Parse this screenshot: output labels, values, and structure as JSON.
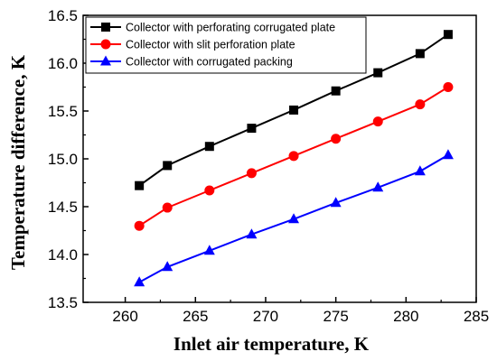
{
  "chart_data": {
    "type": "line",
    "title": "",
    "xlabel": "Inlet air temperature, K",
    "ylabel": "Temperature difference, K",
    "xlim": [
      257,
      285
    ],
    "ylim": [
      13.5,
      16.5
    ],
    "xticks": [
      260,
      265,
      270,
      275,
      280,
      285
    ],
    "yticks": [
      13.5,
      14.0,
      14.5,
      15.0,
      15.5,
      16.0,
      16.5
    ],
    "grid": false,
    "legend_position": "top-left",
    "series": [
      {
        "name": "Collector with perforating corrugated plate",
        "color": "#000000",
        "marker": "square",
        "x": [
          261,
          263,
          266,
          269,
          272,
          275,
          278,
          281,
          283
        ],
        "y": [
          14.72,
          14.93,
          15.13,
          15.32,
          15.51,
          15.71,
          15.9,
          16.1,
          16.3
        ]
      },
      {
        "name": "Collector with slit perforation plate",
        "color": "#ff0000",
        "marker": "circle",
        "x": [
          261,
          263,
          266,
          269,
          272,
          275,
          278,
          281,
          283
        ],
        "y": [
          14.3,
          14.49,
          14.67,
          14.85,
          15.03,
          15.21,
          15.39,
          15.57,
          15.75
        ]
      },
      {
        "name": "Collector with corrugated packing",
        "color": "#0000ff",
        "marker": "triangle",
        "x": [
          261,
          263,
          266,
          269,
          272,
          275,
          278,
          281,
          283
        ],
        "y": [
          13.71,
          13.87,
          14.04,
          14.21,
          14.37,
          14.54,
          14.7,
          14.87,
          15.04
        ]
      }
    ]
  }
}
